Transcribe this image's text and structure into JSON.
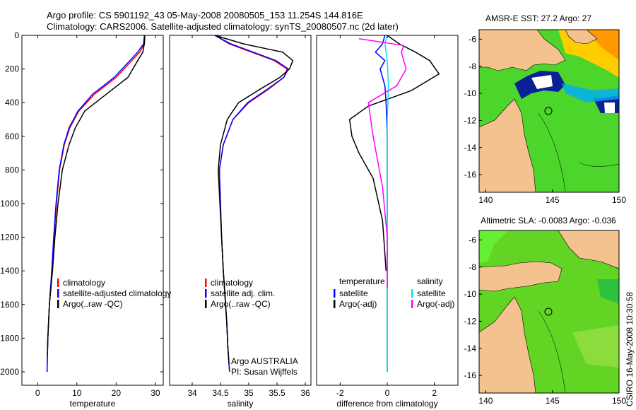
{
  "header": {
    "line1": "Argo profile: CS 5901192_43 05-May-2008 20080505_153 11.254S 144.816E",
    "line2": "Climatology: CARS2006. Satellite-adjusted climatology: synTS_20080507.nc (2d later)"
  },
  "credit": "CSIRO 16-May-2008 10:30:58",
  "colors": {
    "climatology": "#ff0000",
    "satellite": "#0000ff",
    "argo": "#000000",
    "argo_adj": "#ff00ff",
    "sat_adj": "#00e5ee",
    "land": "#f4c28f"
  },
  "chart_data": [
    {
      "type": "line",
      "id": "temperature",
      "xlabel": "temperature",
      "ylabel": "",
      "xlim": [
        -4,
        32
      ],
      "ylim": [
        0,
        2080
      ],
      "y_inverted": true,
      "xticks": [
        0,
        10,
        20,
        30
      ],
      "yticks": [
        0,
        200,
        400,
        600,
        800,
        1000,
        1200,
        1400,
        1600,
        1800,
        2000
      ],
      "legend": [
        "climatology",
        "satellite-adjusted climatology",
        "Argo(..raw -QC)"
      ],
      "legend_placement": "bottom-right",
      "series": [
        {
          "name": "climatology",
          "color": "#ff0000",
          "x": [
            27.3,
            27.2,
            26.0,
            24.0,
            20.0,
            14.5,
            10.5,
            8.2,
            6.8,
            5.6,
            4.8,
            4.2,
            3.7,
            3.3,
            3.0,
            2.8,
            2.6,
            2.5,
            2.4
          ],
          "y": [
            0,
            50,
            100,
            150,
            250,
            350,
            450,
            550,
            650,
            800,
            1000,
            1200,
            1400,
            1500,
            1600,
            1700,
            1800,
            1900,
            2000
          ]
        },
        {
          "name": "satellite-adjusted climatology",
          "color": "#0000ff",
          "x": [
            27.2,
            27.0,
            25.5,
            23.5,
            19.5,
            14.0,
            10.3,
            8.0,
            6.7,
            5.5,
            4.7,
            4.1,
            3.6,
            3.3,
            3.0,
            2.8,
            2.6,
            2.5,
            2.4
          ],
          "y": [
            0,
            50,
            100,
            150,
            250,
            350,
            450,
            550,
            650,
            800,
            1000,
            1200,
            1400,
            1500,
            1600,
            1700,
            1800,
            1900,
            2000
          ]
        },
        {
          "name": "Argo(..raw -QC)",
          "color": "#000000",
          "x": [
            27.3,
            27.2,
            26.8,
            25.5,
            23.0,
            17.5,
            12.0,
            9.6,
            8.0,
            6.3,
            5.2,
            4.4,
            3.8,
            3.4,
            3.0,
            2.8,
            2.6,
            2.5
          ],
          "y": [
            0,
            50,
            100,
            150,
            250,
            350,
            450,
            550,
            650,
            800,
            1000,
            1200,
            1400,
            1500,
            1600,
            1700,
            1800,
            1900
          ]
        }
      ]
    },
    {
      "type": "line",
      "id": "salinity",
      "xlabel": "salinity",
      "ylabel": "",
      "xlim": [
        33.6,
        36.1
      ],
      "ylim": [
        0,
        2080
      ],
      "y_inverted": true,
      "xticks": [
        34,
        34.5,
        35,
        35.5,
        36
      ],
      "xtick_labels": [
        "34",
        "34.5",
        "35",
        "35.5",
        "36"
      ],
      "legend": [
        "climatology",
        "satellite adj. clim.",
        "Argo(..raw -QC)"
      ],
      "legend_placement": "bottom-right",
      "annotation": [
        "Argo AUSTRALIA",
        "PI: Susan Wijffels"
      ],
      "series": [
        {
          "name": "climatology",
          "color": "#ff0000",
          "x": [
            34.4,
            34.65,
            35.05,
            35.45,
            35.68,
            35.62,
            35.35,
            35.0,
            34.72,
            34.55,
            34.48,
            34.5,
            34.52,
            34.55,
            34.58,
            34.61,
            34.63,
            34.65,
            34.66
          ],
          "y": [
            0,
            50,
            100,
            150,
            200,
            250,
            320,
            400,
            500,
            650,
            800,
            1000,
            1200,
            1400,
            1550,
            1700,
            1850,
            1950,
            2000
          ]
        },
        {
          "name": "satellite adj. clim.",
          "color": "#0000ff",
          "x": [
            34.4,
            34.68,
            35.08,
            35.48,
            35.7,
            35.62,
            35.33,
            34.98,
            34.72,
            34.55,
            34.48,
            34.5,
            34.52,
            34.55,
            34.58,
            34.61,
            34.63,
            34.65,
            34.66
          ],
          "y": [
            0,
            50,
            100,
            150,
            200,
            250,
            320,
            400,
            500,
            650,
            800,
            1000,
            1200,
            1400,
            1550,
            1700,
            1850,
            1950,
            2000
          ]
        },
        {
          "name": "Argo(..raw -QC)",
          "color": "#000000",
          "x": [
            34.4,
            34.9,
            35.6,
            35.78,
            35.72,
            35.55,
            35.2,
            34.82,
            34.62,
            34.5,
            34.46,
            34.49,
            34.52,
            34.55,
            34.58,
            34.61,
            34.63,
            34.65
          ],
          "y": [
            0,
            50,
            100,
            150,
            200,
            250,
            320,
            400,
            500,
            650,
            800,
            1000,
            1200,
            1400,
            1550,
            1700,
            1850,
            1950
          ]
        }
      ]
    },
    {
      "type": "line",
      "id": "difference",
      "xlabel": "difference from climatology",
      "ylabel": "",
      "xlim": [
        -3,
        3
      ],
      "ylim": [
        0,
        2080
      ],
      "y_inverted": true,
      "xticks": [
        -2,
        0,
        2
      ],
      "legend_columns": [
        {
          "header": "temperature",
          "items": [
            "satellite",
            "Argo(-adj)"
          ]
        },
        {
          "header": "salinity",
          "items": [
            "satellite",
            "Argo(-adj)"
          ]
        }
      ],
      "legend_placement": "bottom",
      "series": [
        {
          "name": "temperature satellite",
          "color": "#0000ff",
          "x": [
            -0.1,
            -0.2,
            -0.5,
            -0.1,
            -0.3,
            -0.1,
            -0.05,
            0.0,
            0.0,
            0.0,
            0.0,
            0.0,
            0.0
          ],
          "y": [
            0,
            50,
            100,
            150,
            200,
            300,
            400,
            600,
            800,
            1000,
            1400,
            1800,
            2000
          ]
        },
        {
          "name": "temperature Argo(-adj)",
          "color": "#000000",
          "x": [
            0.0,
            0.5,
            1.2,
            1.8,
            2.2,
            1.0,
            -0.8,
            -1.6,
            -1.5,
            -1.2,
            -0.6,
            -0.2,
            -0.1,
            -0.05
          ],
          "y": [
            0,
            50,
            100,
            150,
            230,
            330,
            420,
            500,
            600,
            700,
            850,
            1100,
            1300,
            1400
          ]
        },
        {
          "name": "salinity satellite",
          "color": "#00e5ee",
          "x": [
            0.0,
            -0.1,
            0.0,
            0.05,
            0.0,
            0.0,
            0.0,
            0.0,
            0.0
          ],
          "y": [
            0,
            50,
            150,
            300,
            500,
            800,
            1200,
            1600,
            2000
          ]
        },
        {
          "name": "salinity Argo(-adj)",
          "color": "#ff00ff",
          "x": [
            -1.2,
            0.7,
            0.6,
            0.8,
            0.4,
            -0.8,
            -0.6,
            -0.2,
            0.0,
            0.0
          ],
          "y": [
            20,
            60,
            100,
            200,
            300,
            400,
            600,
            900,
            1200,
            1500
          ]
        }
      ]
    },
    {
      "type": "heatmap",
      "id": "sst-map",
      "title": "AMSR-E SST: 27.2 Argo: 27",
      "xlim": [
        139.5,
        150
      ],
      "ylim": [
        -17.3,
        -5.3
      ],
      "xticks": [
        140,
        145,
        150
      ],
      "yticks": [
        -6,
        -8,
        -10,
        -12,
        -14,
        -16
      ],
      "marker": [
        144.816,
        -11.254
      ]
    },
    {
      "type": "heatmap",
      "id": "sla-map",
      "title": "Altimetric SLA: -0.0083 Argo: -0.036",
      "xlim": [
        139.5,
        150
      ],
      "ylim": [
        -17.3,
        -5.3
      ],
      "xticks": [
        140,
        145,
        150
      ],
      "yticks": [
        -6,
        -8,
        -10,
        -12,
        -14,
        -16
      ],
      "marker": [
        144.816,
        -11.254
      ]
    }
  ]
}
